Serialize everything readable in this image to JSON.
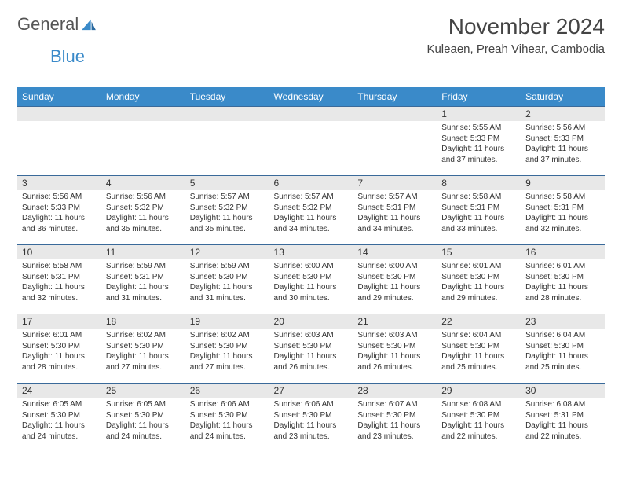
{
  "logo": {
    "text1": "General",
    "text2": "Blue"
  },
  "title": "November 2024",
  "subtitle": "Kuleaen, Preah Vihear, Cambodia",
  "colors": {
    "header_bg": "#3a8ac9",
    "header_text": "#ffffff",
    "cell_border": "#3a6a9a",
    "daynum_bg": "#e8e8e8",
    "body_text": "#333333",
    "logo_gray": "#555555",
    "logo_blue": "#3a8ac9",
    "page_bg": "#ffffff"
  },
  "dow": [
    "Sunday",
    "Monday",
    "Tuesday",
    "Wednesday",
    "Thursday",
    "Friday",
    "Saturday"
  ],
  "weeks": [
    [
      {
        "n": "",
        "lines": []
      },
      {
        "n": "",
        "lines": []
      },
      {
        "n": "",
        "lines": []
      },
      {
        "n": "",
        "lines": []
      },
      {
        "n": "",
        "lines": []
      },
      {
        "n": "1",
        "lines": [
          "Sunrise: 5:55 AM",
          "Sunset: 5:33 PM",
          "Daylight: 11 hours and 37 minutes."
        ]
      },
      {
        "n": "2",
        "lines": [
          "Sunrise: 5:56 AM",
          "Sunset: 5:33 PM",
          "Daylight: 11 hours and 37 minutes."
        ]
      }
    ],
    [
      {
        "n": "3",
        "lines": [
          "Sunrise: 5:56 AM",
          "Sunset: 5:33 PM",
          "Daylight: 11 hours and 36 minutes."
        ]
      },
      {
        "n": "4",
        "lines": [
          "Sunrise: 5:56 AM",
          "Sunset: 5:32 PM",
          "Daylight: 11 hours and 35 minutes."
        ]
      },
      {
        "n": "5",
        "lines": [
          "Sunrise: 5:57 AM",
          "Sunset: 5:32 PM",
          "Daylight: 11 hours and 35 minutes."
        ]
      },
      {
        "n": "6",
        "lines": [
          "Sunrise: 5:57 AM",
          "Sunset: 5:32 PM",
          "Daylight: 11 hours and 34 minutes."
        ]
      },
      {
        "n": "7",
        "lines": [
          "Sunrise: 5:57 AM",
          "Sunset: 5:31 PM",
          "Daylight: 11 hours and 34 minutes."
        ]
      },
      {
        "n": "8",
        "lines": [
          "Sunrise: 5:58 AM",
          "Sunset: 5:31 PM",
          "Daylight: 11 hours and 33 minutes."
        ]
      },
      {
        "n": "9",
        "lines": [
          "Sunrise: 5:58 AM",
          "Sunset: 5:31 PM",
          "Daylight: 11 hours and 32 minutes."
        ]
      }
    ],
    [
      {
        "n": "10",
        "lines": [
          "Sunrise: 5:58 AM",
          "Sunset: 5:31 PM",
          "Daylight: 11 hours and 32 minutes."
        ]
      },
      {
        "n": "11",
        "lines": [
          "Sunrise: 5:59 AM",
          "Sunset: 5:31 PM",
          "Daylight: 11 hours and 31 minutes."
        ]
      },
      {
        "n": "12",
        "lines": [
          "Sunrise: 5:59 AM",
          "Sunset: 5:30 PM",
          "Daylight: 11 hours and 31 minutes."
        ]
      },
      {
        "n": "13",
        "lines": [
          "Sunrise: 6:00 AM",
          "Sunset: 5:30 PM",
          "Daylight: 11 hours and 30 minutes."
        ]
      },
      {
        "n": "14",
        "lines": [
          "Sunrise: 6:00 AM",
          "Sunset: 5:30 PM",
          "Daylight: 11 hours and 29 minutes."
        ]
      },
      {
        "n": "15",
        "lines": [
          "Sunrise: 6:01 AM",
          "Sunset: 5:30 PM",
          "Daylight: 11 hours and 29 minutes."
        ]
      },
      {
        "n": "16",
        "lines": [
          "Sunrise: 6:01 AM",
          "Sunset: 5:30 PM",
          "Daylight: 11 hours and 28 minutes."
        ]
      }
    ],
    [
      {
        "n": "17",
        "lines": [
          "Sunrise: 6:01 AM",
          "Sunset: 5:30 PM",
          "Daylight: 11 hours and 28 minutes."
        ]
      },
      {
        "n": "18",
        "lines": [
          "Sunrise: 6:02 AM",
          "Sunset: 5:30 PM",
          "Daylight: 11 hours and 27 minutes."
        ]
      },
      {
        "n": "19",
        "lines": [
          "Sunrise: 6:02 AM",
          "Sunset: 5:30 PM",
          "Daylight: 11 hours and 27 minutes."
        ]
      },
      {
        "n": "20",
        "lines": [
          "Sunrise: 6:03 AM",
          "Sunset: 5:30 PM",
          "Daylight: 11 hours and 26 minutes."
        ]
      },
      {
        "n": "21",
        "lines": [
          "Sunrise: 6:03 AM",
          "Sunset: 5:30 PM",
          "Daylight: 11 hours and 26 minutes."
        ]
      },
      {
        "n": "22",
        "lines": [
          "Sunrise: 6:04 AM",
          "Sunset: 5:30 PM",
          "Daylight: 11 hours and 25 minutes."
        ]
      },
      {
        "n": "23",
        "lines": [
          "Sunrise: 6:04 AM",
          "Sunset: 5:30 PM",
          "Daylight: 11 hours and 25 minutes."
        ]
      }
    ],
    [
      {
        "n": "24",
        "lines": [
          "Sunrise: 6:05 AM",
          "Sunset: 5:30 PM",
          "Daylight: 11 hours and 24 minutes."
        ]
      },
      {
        "n": "25",
        "lines": [
          "Sunrise: 6:05 AM",
          "Sunset: 5:30 PM",
          "Daylight: 11 hours and 24 minutes."
        ]
      },
      {
        "n": "26",
        "lines": [
          "Sunrise: 6:06 AM",
          "Sunset: 5:30 PM",
          "Daylight: 11 hours and 24 minutes."
        ]
      },
      {
        "n": "27",
        "lines": [
          "Sunrise: 6:06 AM",
          "Sunset: 5:30 PM",
          "Daylight: 11 hours and 23 minutes."
        ]
      },
      {
        "n": "28",
        "lines": [
          "Sunrise: 6:07 AM",
          "Sunset: 5:30 PM",
          "Daylight: 11 hours and 23 minutes."
        ]
      },
      {
        "n": "29",
        "lines": [
          "Sunrise: 6:08 AM",
          "Sunset: 5:30 PM",
          "Daylight: 11 hours and 22 minutes."
        ]
      },
      {
        "n": "30",
        "lines": [
          "Sunrise: 6:08 AM",
          "Sunset: 5:31 PM",
          "Daylight: 11 hours and 22 minutes."
        ]
      }
    ]
  ]
}
